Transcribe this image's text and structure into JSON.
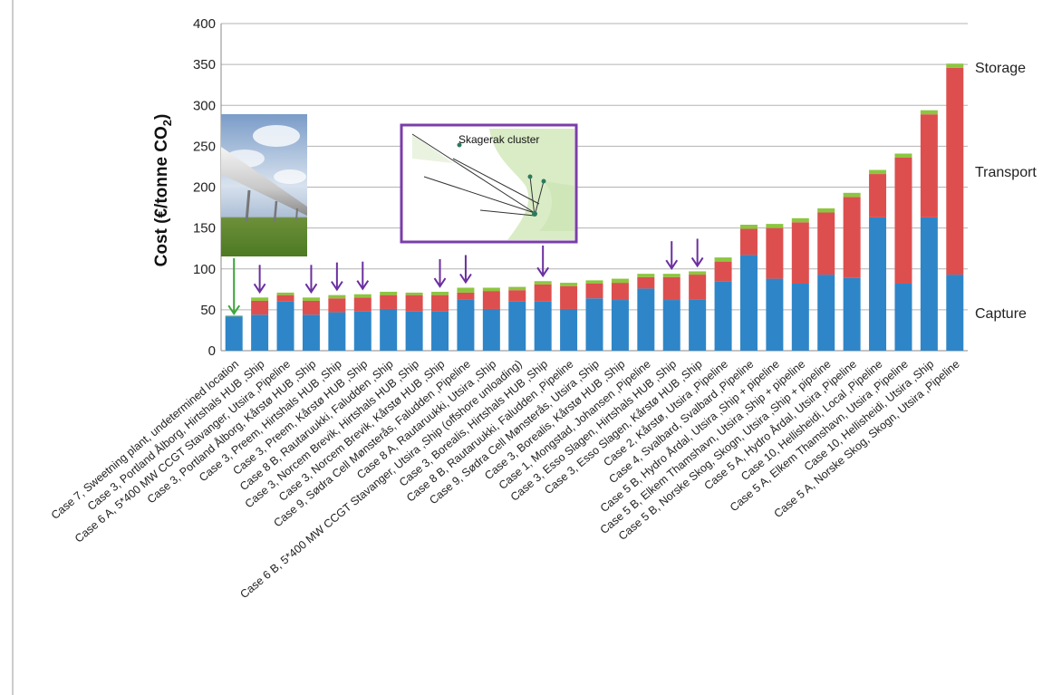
{
  "chart_data": {
    "type": "bar",
    "stacked": true,
    "ylabel": "Cost (€/tonne CO",
    "ylabel_sub": "2",
    "ylabel_end": ")",
    "ylim": [
      0,
      400
    ],
    "yticks": [
      0,
      50,
      100,
      150,
      200,
      250,
      300,
      350,
      400
    ],
    "grid": "horizontal",
    "categories": [
      "Case 7, Sweetning plant, undetermined location",
      "Case 3, Portland Ålborg, Hirtshals HUB ,Ship",
      "Case 6 A, 5*400 MW CCGT Stavanger, Utsira ,Pipeline",
      "Case 3, Portland Ålborg, Kårstø HUB ,Ship",
      "Case 3, Preem, Hirtshals HUB ,Ship",
      "Case 3, Preem, Kårstø HUB ,Ship",
      "Case 8 B, Rautaruukki, Faludden ,Ship",
      "Case 3, Norcem Brevik, Hirtshals HUB ,Ship",
      "Case 3, Norcem Brevik, Kårstø HUB ,Ship",
      "Case 9, Sødra Cell Mønsterås, Faludden ,Pipeline",
      "Case 8 A, Rautaruukki, Utsira ,Ship",
      "Case 6 B, 5*400 MW CCGT Stavanger, Utsira ,Ship (offshore unloading)",
      "Case 3, Borealis, Hirtshals HUB ,Ship",
      "Case 8 B, Rautaruukki, Faludden ,Pipeline",
      "Case 9, Sødra Cell Mønsterås, Utsira ,Ship",
      "Case 3, Borealis, Kårstø HUB ,Ship",
      "Case 1, Mongstad, Johansen ,Pipeline",
      "Case 3, Esso Slagen, Hirtshals HUB ,Ship",
      "Case 3, Esso Slagen, Kårstø HUB ,Ship",
      "Case 2, Kårstø, Utsira ,Pipeline",
      "Case 4, Svalbard, Svalbard ,Pipeline",
      "Case 5 B, Hydro Årdal, Utsira ,Ship + pipeline",
      "Case 5 B, Elkem Thamshavn, Utsira ,Ship + pipeline",
      "Case 5 B, Norske Skog, Skogn, Utsira ,Ship + pipeline",
      "Case 5 A, Hydro Årdal, Utsira ,Pipeline",
      "Case 10, Hellisheidi, Local ,Pipeline",
      "Case 5 A, Elkem Thamshavn, Utsira ,Pipeline",
      "Case 10, Hellisheidi, Utsira ,Ship",
      "Case 5 A, Norske Skog, Skogn, Utsira ,Pipeline"
    ],
    "series": [
      {
        "name": "Capture",
        "color": "#2e86c8",
        "values": [
          42,
          44,
          60,
          44,
          47,
          48,
          51,
          48,
          48,
          63,
          51,
          60,
          60,
          51,
          64,
          62,
          76,
          62,
          63,
          85,
          117,
          88,
          82,
          93,
          89,
          163,
          82,
          163,
          93
        ]
      },
      {
        "name": "Transport",
        "color": "#dd4f4f",
        "values": [
          0,
          17,
          8,
          17,
          17,
          17,
          17,
          20,
          20,
          8,
          22,
          14,
          21,
          28,
          18,
          21,
          14,
          28,
          30,
          24,
          32,
          62,
          75,
          76,
          99,
          53,
          154,
          126,
          253
        ]
      },
      {
        "name": "Storage",
        "color": "#8cc63f",
        "values": [
          1,
          4,
          3,
          4,
          4,
          4,
          4,
          3,
          4,
          6,
          4,
          4,
          4,
          4,
          4,
          5,
          4,
          4,
          4,
          5,
          5,
          5,
          5,
          5,
          5,
          5,
          5,
          5,
          5
        ]
      }
    ],
    "highlight_arrows": {
      "green": [
        0
      ],
      "purple": [
        1,
        3,
        4,
        5,
        8,
        9,
        12,
        17,
        18
      ]
    }
  },
  "inset_map": {
    "title": "Skagerak cluster"
  },
  "colors": {
    "purple_arrow": "#6b2ea0",
    "green_arrow": "#3aa63a",
    "inset_border": "#7a3ea8"
  },
  "images": {
    "pipeline_photo": "pipeline-photo"
  }
}
